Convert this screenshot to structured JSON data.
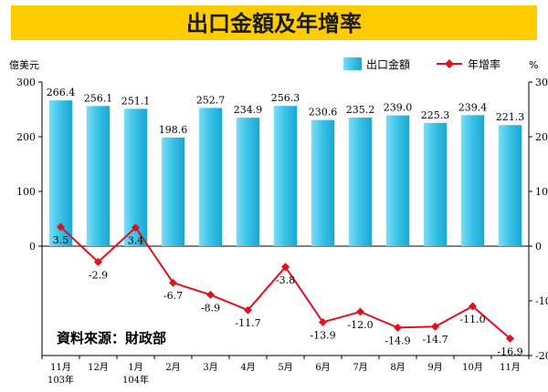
{
  "chart_data": {
    "type": "bar",
    "title": "出口金額及年增率",
    "source_note": "資料來源：財政部",
    "left_axis": {
      "unit": "億美元",
      "ylim": [
        -200,
        300
      ],
      "ticks": [
        300,
        200,
        100,
        0
      ]
    },
    "right_axis": {
      "unit": "%",
      "ylim": [
        -20,
        30
      ],
      "ticks": [
        30,
        20,
        10,
        0,
        -10,
        -20
      ]
    },
    "categories": [
      "11月",
      "12月",
      "1月",
      "2月",
      "3月",
      "4月",
      "5月",
      "6月",
      "7月",
      "8月",
      "9月",
      "10月",
      "11月"
    ],
    "year_labels": [
      "103年",
      "",
      "104年",
      "",
      "",
      "",
      "",
      "",
      "",
      "",
      "",
      "",
      ""
    ],
    "series": [
      {
        "name": "出口金額",
        "kind": "bar",
        "axis": "left",
        "color": "#3cc4e8",
        "values": [
          266.4,
          256.1,
          251.1,
          198.6,
          252.7,
          234.9,
          256.3,
          230.6,
          235.2,
          239.0,
          225.3,
          239.4,
          221.3
        ],
        "labels": [
          "266.4",
          "256.1",
          "251.1",
          "198.6",
          "252.7",
          "234.9",
          "256.3",
          "230.6",
          "235.2",
          "239.0",
          "225.3",
          "239.4",
          "221.3"
        ]
      },
      {
        "name": "年增率",
        "kind": "line",
        "axis": "right",
        "color": "#e0101e",
        "values": [
          3.5,
          -2.9,
          3.4,
          -6.7,
          -8.9,
          -11.7,
          -3.8,
          -13.9,
          -12.0,
          -14.9,
          -14.7,
          -11.0,
          -16.9
        ],
        "labels": [
          "3.5",
          "-2.9",
          "3.4",
          "-6.7",
          "-8.9",
          "-11.7",
          "-3.8",
          "-13.9",
          "-12.0",
          "-14.9",
          "-14.7",
          "-11.0",
          "-16.9"
        ]
      }
    ],
    "colors": {
      "title_bg": "#ffcc00",
      "title_text": "#1a1a1a"
    },
    "legend_placement": "top-right",
    "grid": false
  }
}
